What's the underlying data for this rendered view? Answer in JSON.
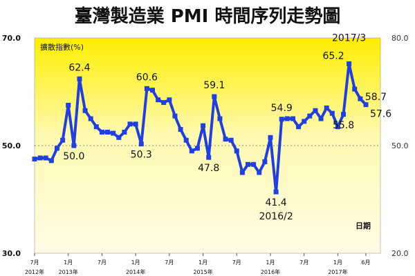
{
  "chart_data": {
    "type": "line",
    "title": "臺灣製造業 PMI 時間序列走勢圖",
    "ylabel": "擴散指數(%)",
    "xlabel": "日期",
    "ylim": [
      30,
      70
    ],
    "y2lim": [
      20,
      80
    ],
    "y_ticks": [
      "70.0",
      "50.0",
      "30.0"
    ],
    "y2_ticks": [
      "80.0",
      "50.0",
      "20.0"
    ],
    "reference_line": 50,
    "x_tick_labels": [
      {
        "month": "7月",
        "year": "2012年"
      },
      {
        "month": "1月",
        "year": "2013年"
      },
      {
        "month": "7月",
        "year": ""
      },
      {
        "month": "1月",
        "year": "2014年"
      },
      {
        "month": "7月",
        "year": ""
      },
      {
        "month": "1月",
        "year": "2015年"
      },
      {
        "month": "7月",
        "year": ""
      },
      {
        "month": "1月",
        "year": "2016年"
      },
      {
        "month": "7月",
        "year": ""
      },
      {
        "month": "1月",
        "year": "2017年"
      },
      {
        "month": "6月",
        "year": ""
      }
    ],
    "series": [
      {
        "color": "#1f3fe0",
        "x": [
          "2012-07",
          "2012-08",
          "2012-09",
          "2012-10",
          "2012-11",
          "2012-12",
          "2013-01",
          "2013-02",
          "2013-03",
          "2013-04",
          "2013-05",
          "2013-06",
          "2013-07",
          "2013-08",
          "2013-09",
          "2013-10",
          "2013-11",
          "2013-12",
          "2014-01",
          "2014-02",
          "2014-03",
          "2014-04",
          "2014-05",
          "2014-06",
          "2014-07",
          "2014-08",
          "2014-09",
          "2014-10",
          "2014-11",
          "2014-12",
          "2015-01",
          "2015-02",
          "2015-03",
          "2015-04",
          "2015-05",
          "2015-06",
          "2015-07",
          "2015-08",
          "2015-09",
          "2015-10",
          "2015-11",
          "2015-12",
          "2016-01",
          "2016-02",
          "2016-03",
          "2016-04",
          "2016-05",
          "2016-06",
          "2016-07",
          "2016-08",
          "2016-09",
          "2016-10",
          "2016-11",
          "2016-12",
          "2017-01",
          "2017-02",
          "2017-03",
          "2017-04",
          "2017-05",
          "2017-06"
        ],
        "values": [
          47.5,
          47.7,
          47.7,
          47.2,
          49.5,
          51.0,
          57.5,
          50.0,
          62.4,
          56.5,
          55.0,
          53.5,
          52.5,
          52.5,
          52.3,
          51.5,
          52.5,
          54.0,
          54.0,
          50.3,
          60.6,
          60.3,
          58.5,
          58.0,
          58.5,
          55.5,
          53.0,
          51.0,
          49.0,
          49.5,
          53.7,
          47.8,
          59.1,
          55.0,
          51.2,
          51.0,
          49.0,
          45.0,
          46.5,
          46.5,
          45.0,
          47.0,
          51.5,
          41.4,
          54.9,
          55.0,
          55.0,
          53.5,
          54.5,
          55.5,
          56.5,
          55.0,
          57.0,
          56.0,
          53.5,
          55.8,
          65.2,
          60.5,
          58.7,
          57.6
        ]
      }
    ],
    "data_labels": [
      {
        "x": "2013-03",
        "text": "62.4",
        "pos": "above"
      },
      {
        "x": "2013-02",
        "text": "50.0",
        "pos": "below"
      },
      {
        "x": "2014-03",
        "text": "60.6",
        "pos": "above"
      },
      {
        "x": "2014-02",
        "text": "50.3",
        "pos": "below"
      },
      {
        "x": "2015-03",
        "text": "59.1",
        "pos": "above"
      },
      {
        "x": "2015-02",
        "text": "47.8",
        "pos": "below"
      },
      {
        "x": "2016-03",
        "text": "54.9",
        "pos": "above"
      },
      {
        "x": "2016-02",
        "text": "41.4",
        "pos": "below"
      },
      {
        "x": "2017-03",
        "text": "65.2",
        "pos": "left"
      },
      {
        "x": "2017-02",
        "text": "55.8",
        "pos": "below"
      },
      {
        "x": "2017-05",
        "text": "58.7",
        "pos": "right"
      },
      {
        "x": "2017-06",
        "text": "57.6",
        "pos": "below-right"
      }
    ],
    "annotations": [
      {
        "x": "2017-03",
        "text": "2017/3",
        "pos": "above"
      },
      {
        "x": "2016-02",
        "text": "2016/2",
        "pos": "below"
      }
    ],
    "background": {
      "top_color": "#ffee00",
      "bottom_color": "#fffbe6"
    }
  }
}
